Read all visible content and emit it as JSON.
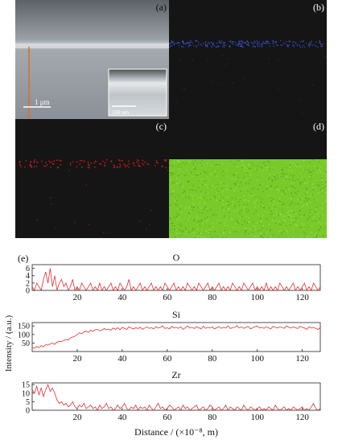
{
  "panels": {
    "a": {
      "label": "(a)",
      "scalebar": "1 μm",
      "inset_scalebar": "200 nm"
    },
    "b": {
      "label": "(b)"
    },
    "c": {
      "label": "(c)"
    },
    "d": {
      "label": "(d)"
    },
    "e": {
      "label": "(e)"
    }
  },
  "colors": {
    "sem_bg": "#8d9399",
    "map_bg": "#151515",
    "oxygen_dots": "#3b4fc8",
    "silicon_dots": "#d21b1b",
    "zirconium_field": "#79c92b",
    "line_color": "#e03030",
    "marker_line": "#e06a2a"
  },
  "chart_data": [
    {
      "type": "line",
      "title": "O",
      "xlabel": "Distance / (×10⁻⁸, m)",
      "ylabel": "Intensity / (a.u.)",
      "xlim": [
        0,
        128
      ],
      "ylim": [
        0,
        7
      ],
      "xticks": [
        20,
        40,
        60,
        80,
        100,
        120
      ],
      "yticks": [
        0,
        2,
        4,
        6
      ],
      "grid": false,
      "series": [
        {
          "values": [
            1,
            0,
            2,
            1,
            0,
            3,
            5,
            2,
            6,
            1,
            4,
            0,
            2,
            3,
            1,
            2,
            0,
            1,
            3,
            0,
            1,
            0,
            2,
            1,
            0,
            1,
            2,
            0,
            1,
            0,
            2,
            0,
            1,
            0,
            1,
            2,
            0,
            1,
            0,
            2,
            1,
            0,
            1,
            3,
            0,
            1,
            0,
            1,
            2,
            0,
            1,
            0,
            1,
            2,
            0,
            1,
            0,
            1,
            0,
            2,
            1,
            0,
            1,
            2,
            0,
            1,
            0,
            1,
            0,
            2,
            1,
            0,
            1,
            0,
            2,
            1,
            0,
            1,
            2,
            0,
            1,
            0,
            1,
            2,
            0,
            1,
            0,
            1,
            0,
            2,
            1,
            0,
            1,
            0,
            2,
            1,
            0,
            1,
            2,
            0,
            1,
            0,
            1,
            0,
            2,
            0,
            1,
            0,
            1,
            0,
            2,
            1,
            0,
            1,
            0,
            1,
            2,
            0,
            1,
            0,
            1,
            2,
            0,
            1,
            0,
            2,
            1,
            0,
            1
          ]
        }
      ]
    },
    {
      "type": "line",
      "title": "Si",
      "xlabel": "Distance / (×10⁻⁸, m)",
      "ylabel": "Intensity / (a.u.)",
      "xlim": [
        0,
        128
      ],
      "ylim": [
        0,
        170
      ],
      "xticks": [
        20,
        40,
        60,
        80,
        100,
        120
      ],
      "yticks": [
        50,
        100,
        150
      ],
      "grid": false,
      "series": [
        {
          "values": [
            25,
            18,
            30,
            22,
            35,
            28,
            40,
            38,
            45,
            50,
            42,
            55,
            60,
            58,
            65,
            70,
            68,
            80,
            85,
            90,
            100,
            110,
            105,
            115,
            120,
            112,
            125,
            118,
            128,
            130,
            122,
            126,
            135,
            128,
            132,
            125,
            138,
            130,
            140,
            128,
            142,
            136,
            130,
            145,
            138,
            132,
            140,
            135,
            142,
            130,
            138,
            145,
            136,
            140,
            132,
            146,
            138,
            142,
            150,
            135,
            140,
            132,
            148,
            138,
            142,
            136,
            145,
            130,
            140,
            150,
            138,
            142,
            135,
            146,
            140,
            132,
            148,
            136,
            142,
            138,
            145,
            132,
            140,
            146,
            136,
            142,
            138,
            150,
            135,
            140,
            142,
            152,
            138,
            145,
            136,
            142,
            148,
            132,
            140,
            145,
            150,
            138,
            142,
            136,
            145,
            140,
            132,
            148,
            142,
            138,
            145,
            140,
            136,
            150,
            142,
            138,
            145,
            140,
            135,
            148,
            142,
            138,
            130,
            145,
            138,
            142,
            135,
            130,
            140
          ]
        }
      ]
    },
    {
      "type": "line",
      "title": "Zr",
      "xlabel": "Distance / (×10⁻⁸, m)",
      "ylabel": "Intensity / (a.u.)",
      "xlim": [
        0,
        128
      ],
      "ylim": [
        0,
        16
      ],
      "xticks": [
        20,
        40,
        60,
        80,
        100,
        120
      ],
      "yticks": [
        0,
        5,
        10,
        15
      ],
      "grid": false,
      "series": [
        {
          "values": [
            12,
            10,
            14,
            9,
            13,
            8,
            12,
            15,
            11,
            13,
            10,
            6,
            4,
            5,
            3,
            4,
            2,
            3,
            5,
            2,
            1,
            3,
            2,
            4,
            1,
            2,
            3,
            1,
            2,
            0,
            3,
            1,
            2,
            4,
            1,
            2,
            0,
            1,
            3,
            1,
            2,
            4,
            1,
            0,
            2,
            1,
            3,
            0,
            2,
            1,
            2,
            0,
            3,
            1,
            0,
            2,
            4,
            1,
            2,
            0,
            1,
            3,
            2,
            0,
            1,
            2,
            0,
            3,
            1,
            2,
            0,
            1,
            2,
            3,
            0,
            1,
            2,
            0,
            1,
            3,
            2,
            0,
            1,
            2,
            0,
            1,
            3,
            0,
            2,
            1,
            0,
            2,
            1,
            0,
            3,
            1,
            0,
            2,
            1,
            0,
            1,
            2,
            0,
            1,
            0,
            2,
            1,
            0,
            3,
            1,
            0,
            1,
            2,
            0,
            1,
            0,
            2,
            1,
            0,
            1,
            2,
            0,
            1,
            0,
            2,
            4,
            1,
            0,
            1
          ]
        }
      ]
    }
  ]
}
